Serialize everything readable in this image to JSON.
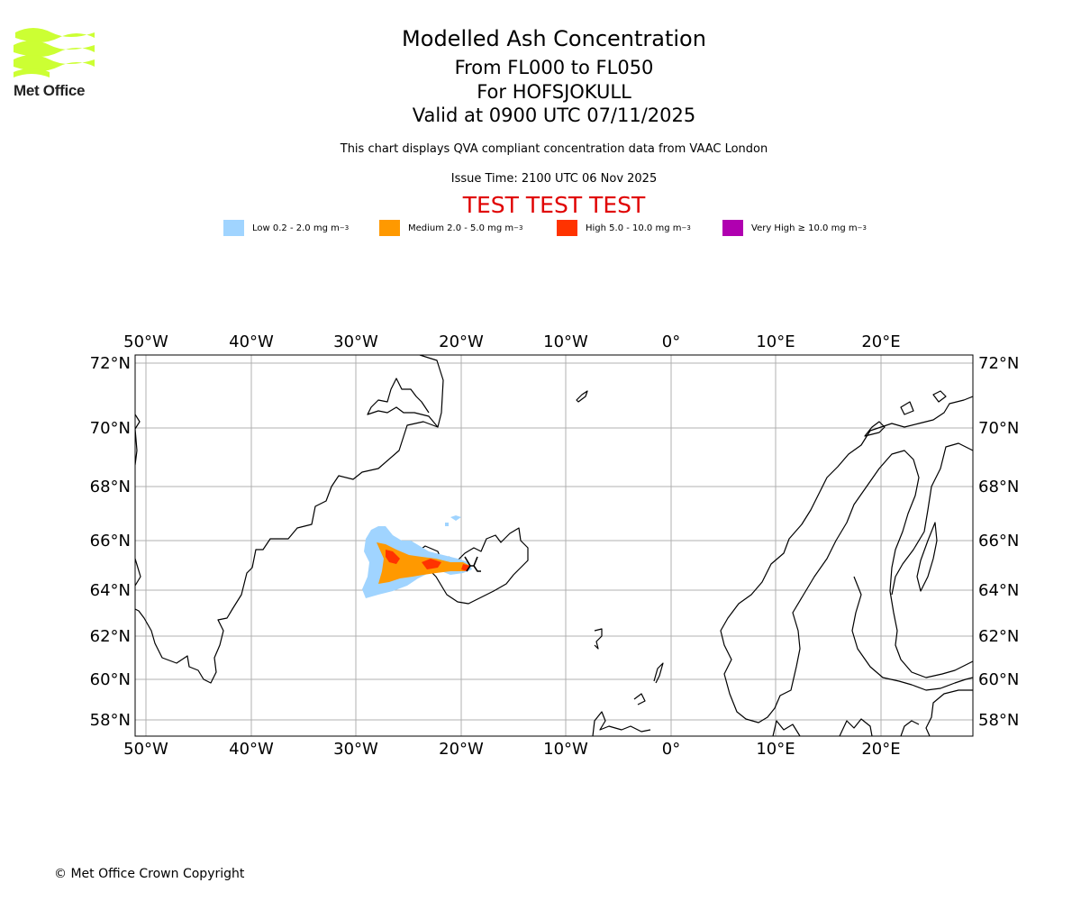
{
  "logo": {
    "text": "Met Office",
    "color": "#ccff33"
  },
  "header": {
    "title": "Modelled Ash Concentration",
    "levels": "From FL000 to FL050",
    "volcano": "For HOFSJOKULL",
    "valid": "Valid at 0900 UTC 07/11/2025",
    "note": "This chart displays QVA compliant concentration data from VAAC London",
    "issue": "Issue Time: 2100 UTC 06 Nov 2025",
    "test": "TEST TEST TEST"
  },
  "legend": [
    {
      "label": "Low 0.2 - 2.0 mg m",
      "sup": "−3",
      "color": "#a0d4ff"
    },
    {
      "label": "Medium 2.0 - 5.0 mg m",
      "sup": "−3",
      "color": "#ff9900"
    },
    {
      "label": "High 5.0 - 10.0 mg m",
      "sup": "−3",
      "color": "#ff3300"
    },
    {
      "label": "Very High  ≥  10.0 mg m",
      "sup": "−3",
      "color": "#b000b0"
    }
  ],
  "map": {
    "lon_labels": [
      "50°W",
      "40°W",
      "30°W",
      "20°W",
      "10°W",
      "0°",
      "10°E",
      "20°E"
    ],
    "lat_labels": [
      "72°N",
      "70°N",
      "68°N",
      "66°N",
      "64°N",
      "62°N",
      "60°N",
      "58°N"
    ],
    "grid_color": "#b0b0b0"
  },
  "footer": {
    "copyright": "© Met Office Crown Copyright"
  }
}
